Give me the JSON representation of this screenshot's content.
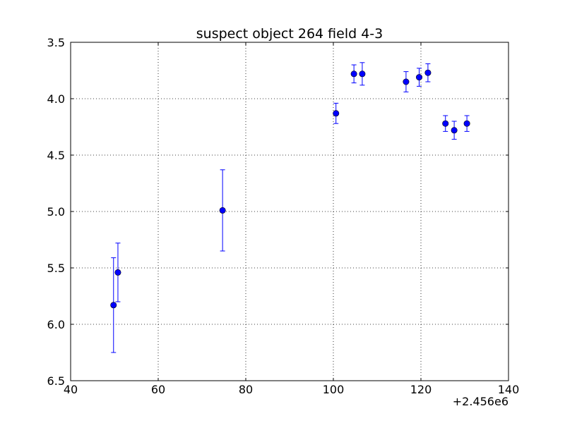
{
  "chart_data": {
    "type": "scatter",
    "title": "suspect object 264 field 4-3",
    "xlabel": "",
    "ylabel": "",
    "x_offset_label": "+2.456e6",
    "xlim": [
      40,
      140
    ],
    "ylim": [
      6.5,
      3.5
    ],
    "y_inverted": true,
    "grid": true,
    "x_ticks": [
      40,
      60,
      80,
      100,
      120,
      140
    ],
    "x_tick_labels": [
      "40",
      "60",
      "80",
      "100",
      "120",
      "140"
    ],
    "y_ticks": [
      3.5,
      4.0,
      4.5,
      5.0,
      5.5,
      6.0,
      6.5
    ],
    "y_tick_labels": [
      "3.5",
      "4.0",
      "4.5",
      "5.0",
      "5.5",
      "6.0",
      "6.5"
    ],
    "series": [
      {
        "marker_color": "#0000ff",
        "points": [
          {
            "x": 49.8,
            "y": 5.83,
            "err": 0.42
          },
          {
            "x": 50.8,
            "y": 5.54,
            "err": 0.26
          },
          {
            "x": 74.7,
            "y": 4.99,
            "err": 0.36
          },
          {
            "x": 100.6,
            "y": 4.13,
            "err": 0.09
          },
          {
            "x": 104.7,
            "y": 3.78,
            "err": 0.08
          },
          {
            "x": 106.6,
            "y": 3.78,
            "err": 0.1
          },
          {
            "x": 116.6,
            "y": 3.85,
            "err": 0.09
          },
          {
            "x": 119.6,
            "y": 3.81,
            "err": 0.08
          },
          {
            "x": 121.6,
            "y": 3.77,
            "err": 0.08
          },
          {
            "x": 125.6,
            "y": 4.22,
            "err": 0.07
          },
          {
            "x": 127.6,
            "y": 4.28,
            "err": 0.08
          },
          {
            "x": 130.5,
            "y": 4.22,
            "err": 0.07
          }
        ]
      }
    ]
  }
}
